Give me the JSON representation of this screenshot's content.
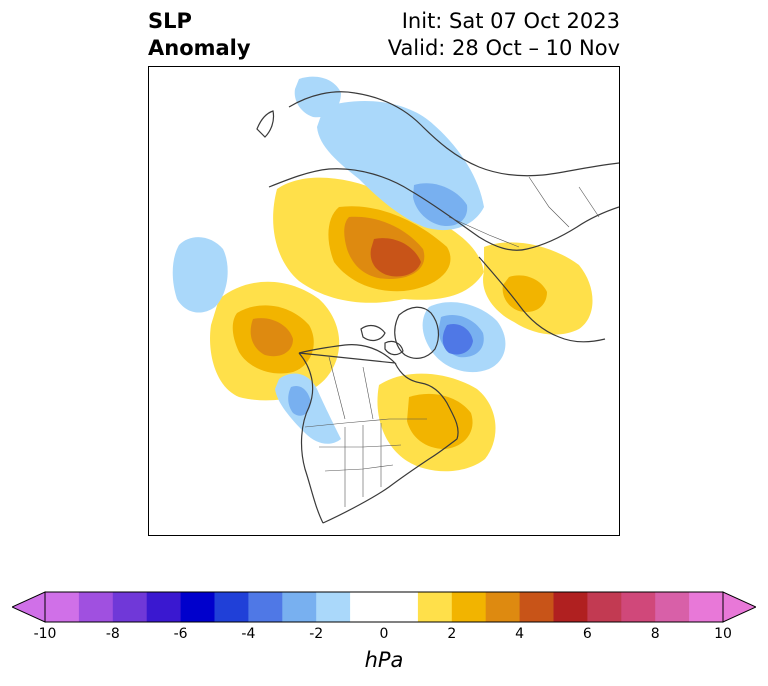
{
  "title": {
    "left_line1": "SLP",
    "left_line2": "Anomaly",
    "right_line1": "Init: Sat 07 Oct 2023",
    "right_line2": "Valid: 28 Oct – 10 Nov"
  },
  "colorbar": {
    "unit_label": "hPa",
    "ticks": [
      "-10",
      "-8",
      "-6",
      "-4",
      "-2",
      "0",
      "2",
      "4",
      "6",
      "8",
      "10"
    ],
    "bins": [
      "#d070e8",
      "#a050e0",
      "#7038d8",
      "#3a18d0",
      "#0000cc",
      "#2040d8",
      "#4f78e6",
      "#78b0f0",
      "#aad8fa",
      "#ffffff",
      "#ffffff",
      "#ffe04a",
      "#f2b400",
      "#de8a10",
      "#c85418",
      "#b02020",
      "#c23a52",
      "#d0487a",
      "#d860a8",
      "#e878d8"
    ]
  },
  "map": {
    "projection": "north-polar-stereographic",
    "anomalies": [
      {
        "sign": "positive",
        "region": "Eurasia/Arctic coast",
        "peak_hPa": 6
      },
      {
        "sign": "positive",
        "region": "Alaska/Bering Sea",
        "peak_hPa": 4
      },
      {
        "sign": "positive",
        "region": "Eastern Canada/Hudson Bay",
        "peak_hPa": 4
      },
      {
        "sign": "positive",
        "region": "Europe/Scandinavia",
        "peak_hPa": 2
      },
      {
        "sign": "negative",
        "region": "Greenland/Baffin",
        "peak_hPa": -4
      },
      {
        "sign": "negative",
        "region": "Central Asia/Siberia",
        "peak_hPa": -4
      },
      {
        "sign": "negative",
        "region": "North Pacific",
        "peak_hPa": -2
      },
      {
        "sign": "negative",
        "region": "West coast North America",
        "peak_hPa": -2
      }
    ]
  }
}
